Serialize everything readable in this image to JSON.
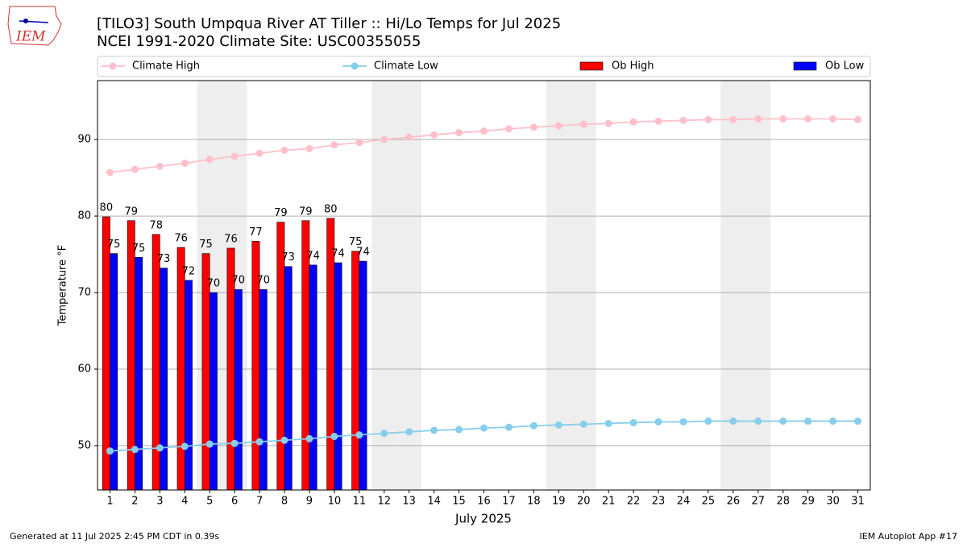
{
  "chart_data": {
    "type": "bar_line",
    "logo_text": "IEM",
    "title": "[TILO3] South Umpqua River  AT Tiller :: Hi/Lo Temps for Jul 2025",
    "subtitle": "NCEI 1991-2020 Climate Site: USC00355055",
    "ylabel": "Temperature °F",
    "xlabel": "July 2025",
    "footer_left": "Generated at 11 Jul 2025 2:45 PM CDT in 0.39s",
    "footer_right": "IEM Autoplot App #17",
    "x": [
      1,
      2,
      3,
      4,
      5,
      6,
      7,
      8,
      9,
      10,
      11,
      12,
      13,
      14,
      15,
      16,
      17,
      18,
      19,
      20,
      21,
      22,
      23,
      24,
      25,
      26,
      27,
      28,
      29,
      30,
      31
    ],
    "xlim": [
      0.5,
      31.5
    ],
    "ylim": [
      44.2,
      97.7
    ],
    "yticks": [
      50,
      60,
      70,
      80,
      90
    ],
    "grid": true,
    "shaded_days": [
      5,
      6,
      12,
      13,
      19,
      20,
      26,
      27
    ],
    "series": [
      {
        "name": "Climate High",
        "kind": "line",
        "color": "#ffc0cb",
        "values": [
          85.7,
          86.1,
          86.5,
          86.9,
          87.4,
          87.8,
          88.2,
          88.6,
          88.8,
          89.3,
          89.6,
          90.0,
          90.3,
          90.6,
          90.9,
          91.1,
          91.4,
          91.6,
          91.8,
          92.0,
          92.1,
          92.3,
          92.4,
          92.5,
          92.6,
          92.6,
          92.7,
          92.7,
          92.7,
          92.7,
          92.6
        ]
      },
      {
        "name": "Climate Low",
        "kind": "line",
        "color": "#87ceeb",
        "values": [
          49.3,
          49.5,
          49.7,
          49.9,
          50.2,
          50.3,
          50.5,
          50.7,
          50.9,
          51.2,
          51.4,
          51.6,
          51.8,
          52.0,
          52.1,
          52.3,
          52.4,
          52.6,
          52.7,
          52.8,
          52.9,
          53.0,
          53.1,
          53.1,
          53.2,
          53.2,
          53.2,
          53.2,
          53.2,
          53.2,
          53.2
        ]
      },
      {
        "name": "Ob High",
        "kind": "bar",
        "color": "#ff0000",
        "values": [
          79.9,
          79.4,
          77.6,
          75.9,
          75.1,
          75.8,
          76.7,
          79.2,
          79.4,
          79.7,
          75.4,
          null,
          null,
          null,
          null,
          null,
          null,
          null,
          null,
          null,
          null,
          null,
          null,
          null,
          null,
          null,
          null,
          null,
          null,
          null,
          null
        ],
        "value_labels": [
          "80",
          "79",
          "78",
          "76",
          "75",
          "76",
          "77",
          "79",
          "79",
          "80",
          "75",
          null,
          null,
          null,
          null,
          null,
          null,
          null,
          null,
          null,
          null,
          null,
          null,
          null,
          null,
          null,
          null,
          null,
          null,
          null,
          null
        ]
      },
      {
        "name": "Ob Low",
        "kind": "bar",
        "color": "#0000ff",
        "values": [
          75.1,
          74.6,
          73.2,
          71.6,
          70.0,
          70.4,
          70.4,
          73.4,
          73.6,
          73.9,
          74.1,
          null,
          null,
          null,
          null,
          null,
          null,
          null,
          null,
          null,
          null,
          null,
          null,
          null,
          null,
          null,
          null,
          null,
          null,
          null,
          null
        ],
        "value_labels": [
          "75",
          "75",
          "73",
          "72",
          "70",
          "70",
          "70",
          "73",
          "74",
          "74",
          "74",
          null,
          null,
          null,
          null,
          null,
          null,
          null,
          null,
          null,
          null,
          null,
          null,
          null,
          null,
          null,
          null,
          null,
          null,
          null,
          null
        ]
      }
    ]
  }
}
